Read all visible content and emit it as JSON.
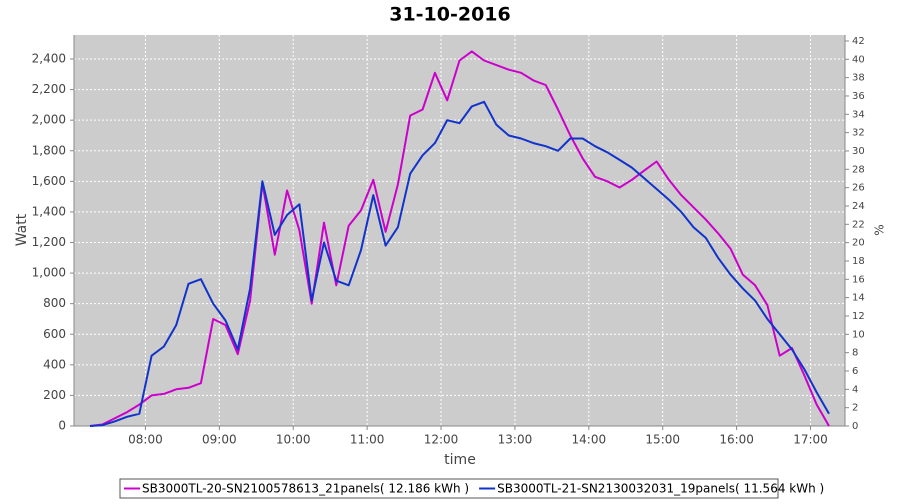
{
  "chart_data": {
    "type": "line",
    "title": "31-10-2016",
    "xlabel": "time",
    "ylabel": "Watt",
    "y2label": "%",
    "x": [
      "07:15",
      "07:25",
      "07:35",
      "07:45",
      "07:55",
      "08:05",
      "08:15",
      "08:25",
      "08:35",
      "08:45",
      "08:55",
      "09:05",
      "09:15",
      "09:25",
      "09:35",
      "09:45",
      "09:55",
      "10:05",
      "10:15",
      "10:25",
      "10:35",
      "10:45",
      "10:55",
      "11:05",
      "11:15",
      "11:25",
      "11:35",
      "11:45",
      "11:55",
      "12:05",
      "12:15",
      "12:25",
      "12:35",
      "12:45",
      "12:55",
      "13:05",
      "13:15",
      "13:25",
      "13:35",
      "13:45",
      "13:55",
      "14:05",
      "14:15",
      "14:25",
      "14:35",
      "14:45",
      "14:55",
      "15:05",
      "15:15",
      "15:25",
      "15:35",
      "15:45",
      "15:55",
      "16:05",
      "16:15",
      "16:25",
      "16:35",
      "16:45",
      "16:55",
      "17:05",
      "17:15"
    ],
    "series": [
      {
        "name": "SB3000TL-20-SN2100578613_21panels( 12.186 kWh )",
        "color": "#cc00cc",
        "values": [
          0,
          10,
          50,
          90,
          140,
          200,
          210,
          240,
          250,
          280,
          700,
          660,
          470,
          820,
          1590,
          1120,
          1540,
          1280,
          800,
          1330,
          920,
          1310,
          1410,
          1610,
          1270,
          1580,
          2030,
          2070,
          2310,
          2130,
          2390,
          2450,
          2390,
          2360,
          2330,
          2310,
          2260,
          2230,
          2070,
          1900,
          1750,
          1630,
          1600,
          1560,
          1610,
          1670,
          1730,
          1610,
          1510,
          1430,
          1350,
          1260,
          1160,
          990,
          920,
          790,
          460,
          510,
          330,
          140,
          0
        ]
      },
      {
        "name": "SB3000TL-21-SN2130032031_19panels( 11.564 kWh )",
        "color": "#1133cc",
        "values": [
          0,
          5,
          30,
          60,
          80,
          460,
          520,
          660,
          930,
          960,
          800,
          690,
          500,
          900,
          1600,
          1250,
          1380,
          1450,
          820,
          1200,
          950,
          920,
          1150,
          1510,
          1180,
          1300,
          1650,
          1770,
          1850,
          2000,
          1980,
          2090,
          2120,
          1970,
          1900,
          1880,
          1850,
          1830,
          1800,
          1880,
          1880,
          1830,
          1790,
          1740,
          1690,
          1620,
          1550,
          1480,
          1400,
          1300,
          1230,
          1100,
          990,
          900,
          820,
          700,
          600,
          500,
          370,
          220,
          80
        ]
      }
    ],
    "xlim": [
      "07:02",
      "17:28"
    ],
    "xticks": [
      "08:00",
      "09:00",
      "10:00",
      "11:00",
      "12:00",
      "13:00",
      "14:00",
      "15:00",
      "16:00",
      "17:00"
    ],
    "ylim": [
      0,
      2557
    ],
    "yticks": [
      0,
      200,
      400,
      600,
      800,
      {
        "value": 1000,
        "label": "1,000"
      },
      {
        "value": 1200,
        "label": "1,200"
      },
      {
        "value": 1400,
        "label": "1,400"
      },
      {
        "value": 1600,
        "label": "1,600"
      },
      {
        "value": 1800,
        "label": "1,800"
      },
      {
        "value": 2000,
        "label": "2,000"
      },
      {
        "value": 2200,
        "label": "2,200"
      },
      {
        "value": 2400,
        "label": "2,400"
      }
    ],
    "y2lim": [
      0,
      42.65
    ],
    "y2ticks": [
      0,
      2,
      4,
      6,
      8,
      10,
      12,
      14,
      16,
      18,
      20,
      22,
      24,
      26,
      28,
      30,
      32,
      34,
      36,
      38,
      40,
      42
    ],
    "grid": true
  }
}
